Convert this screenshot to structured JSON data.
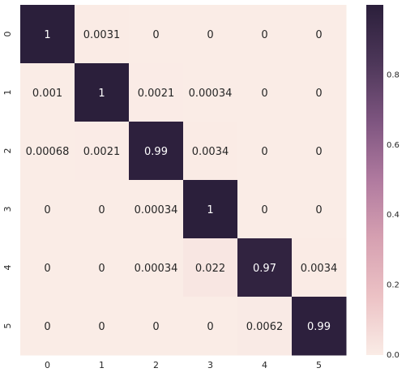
{
  "chart_data": {
    "type": "heatmap",
    "title": "",
    "xlabel": "",
    "ylabel": "",
    "x_tick_labels": [
      "0",
      "1",
      "2",
      "3",
      "4",
      "5"
    ],
    "y_tick_labels": [
      "0",
      "1",
      "2",
      "3",
      "4",
      "5"
    ],
    "values": [
      [
        1,
        0.0031,
        0,
        0,
        0,
        0
      ],
      [
        0.001,
        1,
        0.0021,
        0.00034,
        0,
        0
      ],
      [
        0.00068,
        0.0021,
        0.99,
        0.0034,
        0,
        0
      ],
      [
        0,
        0,
        0.00034,
        1,
        0,
        0
      ],
      [
        0,
        0,
        0.00034,
        0.022,
        0.97,
        0.0034
      ],
      [
        0,
        0,
        0,
        0,
        0.0062,
        0.99
      ]
    ],
    "annotations": [
      [
        "1",
        "0.0031",
        "0",
        "0",
        "0",
        "0"
      ],
      [
        "0.001",
        "1",
        "0.0021",
        "0.00034",
        "0",
        "0"
      ],
      [
        "0.00068",
        "0.0021",
        "0.99",
        "0.0034",
        "0",
        "0"
      ],
      [
        "0",
        "0",
        "0.00034",
        "1",
        "0",
        "0"
      ],
      [
        "0",
        "0",
        "0.00034",
        "0.022",
        "0.97",
        "0.0034"
      ],
      [
        "0",
        "0",
        "0",
        "0",
        "0.0062",
        "0.99"
      ]
    ],
    "vmin": 0,
    "vmax": 1,
    "colorbar": {
      "ticks": [
        0.0,
        0.2,
        0.4,
        0.6,
        0.8
      ],
      "tick_labels": [
        "0.0",
        "0.2",
        "0.4",
        "0.6",
        "0.8"
      ],
      "placement": "right"
    },
    "colormap_stops": [
      "#faece6",
      "#ecc2c5",
      "#d6a0b1",
      "#b07a9f",
      "#7e5580",
      "#4d3759",
      "#2b1f3b"
    ],
    "annotation_colors": {
      "on_light": "#262626",
      "on_dark": "#ffffff"
    }
  }
}
